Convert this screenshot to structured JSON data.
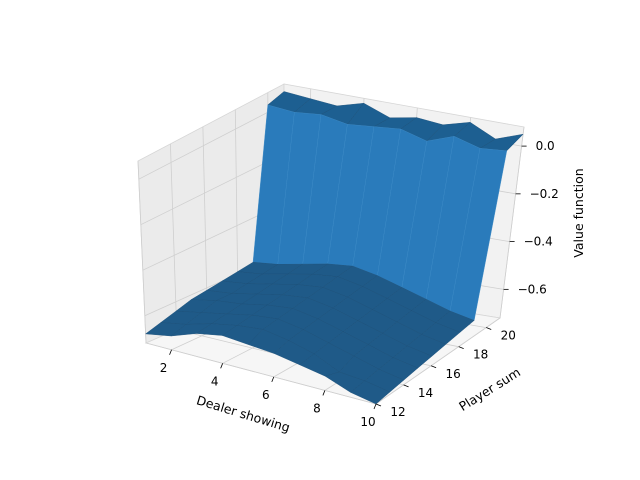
{
  "chart_data": {
    "type": "surface3d",
    "title": "",
    "xlabel": "Dealer showing",
    "ylabel": "Player sum",
    "zlabel": "Value function",
    "x": [
      1,
      2,
      3,
      4,
      5,
      6,
      7,
      8,
      9,
      10
    ],
    "y": [
      12,
      13,
      14,
      15,
      16,
      17,
      18,
      19,
      20,
      21
    ],
    "xlim": [
      1,
      10
    ],
    "ylim": [
      12,
      21
    ],
    "zlim": [
      -0.72,
      0.08
    ],
    "x_ticks": [
      2,
      4,
      6,
      8,
      10
    ],
    "y_ticks": [
      12,
      14,
      16,
      18,
      20
    ],
    "z_ticks": [
      0.0,
      -0.2,
      -0.4,
      -0.6
    ],
    "x_tick_labels": [
      "2",
      "4",
      "6",
      "8",
      "10"
    ],
    "y_tick_labels": [
      "12",
      "14",
      "16",
      "18",
      "20"
    ],
    "z_tick_labels": [
      "0.0",
      "−0.2",
      "−0.4",
      "−0.6"
    ],
    "grid": true,
    "surface_color": "#1f77b4",
    "z": [
      [
        -0.68,
        -0.66,
        -0.62,
        -0.6,
        -0.61,
        -0.62,
        -0.64,
        -0.66,
        -0.7,
        -0.72
      ],
      [
        -0.66,
        -0.64,
        -0.61,
        -0.59,
        -0.58,
        -0.6,
        -0.63,
        -0.68,
        -0.69,
        -0.71
      ],
      [
        -0.64,
        -0.62,
        -0.6,
        -0.58,
        -0.57,
        -0.59,
        -0.62,
        -0.65,
        -0.68,
        -0.7
      ],
      [
        -0.62,
        -0.6,
        -0.59,
        -0.57,
        -0.56,
        -0.58,
        -0.61,
        -0.64,
        -0.67,
        -0.69
      ],
      [
        -0.61,
        -0.6,
        -0.58,
        -0.56,
        -0.55,
        -0.57,
        -0.6,
        -0.63,
        -0.66,
        -0.68
      ],
      [
        -0.6,
        -0.59,
        -0.57,
        -0.55,
        -0.54,
        -0.56,
        -0.59,
        -0.62,
        -0.65,
        -0.67
      ],
      [
        -0.59,
        -0.58,
        -0.56,
        -0.54,
        -0.53,
        -0.55,
        -0.58,
        -0.61,
        -0.64,
        -0.66
      ],
      [
        -0.58,
        -0.57,
        -0.55,
        -0.53,
        -0.52,
        -0.54,
        -0.57,
        -0.6,
        -0.63,
        -0.65
      ],
      [
        0.03,
        0.02,
        0.03,
        0.01,
        0.02,
        0.03,
        0.0,
        0.04,
        0.01,
        0.02
      ],
      [
        0.05,
        0.04,
        0.03,
        0.06,
        0.02,
        0.04,
        0.03,
        0.06,
        0.01,
        0.05
      ]
    ]
  }
}
